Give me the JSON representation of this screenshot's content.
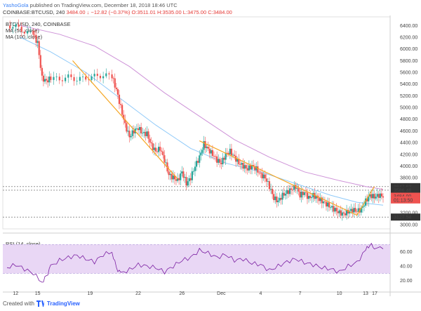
{
  "header": {
    "author": "YashoGola",
    "published_text": "published on TradingView.com, December 18, 2018 18:46 UTC",
    "symbol": "COINBASE:BTCUSD, 240",
    "change": "3484.00 ↓ −12.82 (−0.37%)",
    "o": "O:3511.01",
    "h": "H:3535.00",
    "l": "L:3475.00",
    "c": "C:3484.00"
  },
  "legend": {
    "title": "BTC/USD, 240, COINBASE",
    "ma50": "MA (50, close)",
    "ma100": "MA (100, close)",
    "rsi": "RSI (14, close)"
  },
  "footer": {
    "created_with": "Created with",
    "brand": "TradingView"
  },
  "colors": {
    "up": "#26a69a",
    "down": "#ef5350",
    "ma50": "#90caf9",
    "ma100": "#ce93d8",
    "trend": "#f5a623",
    "rsi_line": "#7b1fa2",
    "rsi_band": "#e9d7f5"
  },
  "chart_data": [
    {
      "type": "candlestick",
      "title": "BTC/USD, 240, COINBASE",
      "x_ticks": [
        "12",
        "15",
        "19",
        "22",
        "26",
        "Dec",
        "4",
        "7",
        "10",
        "13",
        "17"
      ],
      "y_ticks": [
        3000,
        3200,
        3400,
        3600,
        3800,
        4000,
        4200,
        4400,
        4600,
        4800,
        5000,
        5200,
        5400,
        5600,
        5800,
        6000,
        6200,
        6400
      ],
      "ylim": [
        2950,
        6500
      ],
      "price_tags": [
        {
          "label": "3647.63",
          "value": 3647.63,
          "color": "#333333"
        },
        {
          "label": "3586.46",
          "value": 3586.46,
          "color": "#333333"
        },
        {
          "label": "3484.00",
          "value": 3484,
          "color": "#ef5350"
        },
        {
          "label": "01:13:50",
          "value": 3420,
          "color": "#ef5350"
        },
        {
          "label": "3127.54",
          "value": 3127.54,
          "color": "#333333"
        }
      ],
      "support_lines": [
        3647.63,
        3586.46,
        3127.54
      ],
      "close_path": [
        [
          0,
          6400
        ],
        [
          2,
          6380
        ],
        [
          4,
          6300
        ],
        [
          6,
          6250
        ],
        [
          7,
          6100
        ],
        [
          8,
          5500
        ],
        [
          9,
          5450
        ],
        [
          10,
          5500
        ],
        [
          12,
          5480
        ],
        [
          14,
          5520
        ],
        [
          16,
          5480
        ],
        [
          18,
          5500
        ],
        [
          20,
          5530
        ],
        [
          22,
          5550
        ],
        [
          24,
          5530
        ],
        [
          25,
          5300
        ],
        [
          26,
          5000
        ],
        [
          27,
          4700
        ],
        [
          28,
          4500
        ],
        [
          29,
          4600
        ],
        [
          30,
          4650
        ],
        [
          31,
          4560
        ],
        [
          32,
          4550
        ],
        [
          33,
          4350
        ],
        [
          34,
          4250
        ],
        [
          35,
          4300
        ],
        [
          36,
          4100
        ],
        [
          37,
          3850
        ],
        [
          38,
          3800
        ],
        [
          39,
          3750
        ],
        [
          40,
          3900
        ],
        [
          41,
          3700
        ],
        [
          42,
          3800
        ],
        [
          43,
          4000
        ],
        [
          44,
          4150
        ],
        [
          45,
          4380
        ],
        [
          46,
          4280
        ],
        [
          47,
          4200
        ],
        [
          48,
          4100
        ],
        [
          49,
          4050
        ],
        [
          50,
          4200
        ],
        [
          51,
          4250
        ],
        [
          52,
          4150
        ],
        [
          53,
          4050
        ],
        [
          54,
          4000
        ],
        [
          55,
          3950
        ],
        [
          56,
          4000
        ],
        [
          57,
          3950
        ],
        [
          58,
          3850
        ],
        [
          59,
          3800
        ],
        [
          60,
          3650
        ],
        [
          61,
          3450
        ],
        [
          62,
          3400
        ],
        [
          63,
          3500
        ],
        [
          64,
          3550
        ],
        [
          65,
          3600
        ],
        [
          66,
          3650
        ],
        [
          67,
          3500
        ],
        [
          68,
          3550
        ],
        [
          69,
          3450
        ],
        [
          70,
          3500
        ],
        [
          71,
          3450
        ],
        [
          72,
          3400
        ],
        [
          73,
          3350
        ],
        [
          74,
          3300
        ],
        [
          75,
          3250
        ],
        [
          76,
          3200
        ],
        [
          77,
          3180
        ],
        [
          78,
          3220
        ],
        [
          79,
          3250
        ],
        [
          80,
          3230
        ],
        [
          81,
          3260
        ],
        [
          82,
          3400
        ],
        [
          83,
          3500
        ],
        [
          84,
          3470
        ],
        [
          85,
          3500
        ],
        [
          86,
          3484
        ]
      ],
      "ma50": [
        [
          3,
          6200
        ],
        [
          10,
          5950
        ],
        [
          18,
          5600
        ],
        [
          26,
          5150
        ],
        [
          34,
          4700
        ],
        [
          42,
          4300
        ],
        [
          50,
          4050
        ],
        [
          58,
          3900
        ],
        [
          66,
          3700
        ],
        [
          74,
          3500
        ],
        [
          80,
          3380
        ],
        [
          86,
          3330
        ]
      ],
      "ma100": [
        [
          3,
          6400
        ],
        [
          12,
          6250
        ],
        [
          20,
          6050
        ],
        [
          28,
          5700
        ],
        [
          36,
          5250
        ],
        [
          44,
          4850
        ],
        [
          52,
          4450
        ],
        [
          60,
          4150
        ],
        [
          68,
          3900
        ],
        [
          76,
          3750
        ],
        [
          82,
          3650
        ],
        [
          86,
          3600
        ]
      ],
      "trendlines": [
        {
          "from": [
            15,
            5800
          ],
          "to": [
            39,
            3780
          ]
        },
        {
          "from": [
            44,
            4430
          ],
          "to": [
            80,
            3160
          ]
        },
        {
          "from": [
            80,
            3160
          ],
          "to": [
            84,
            3650
          ]
        }
      ]
    },
    {
      "type": "line",
      "title": "RSI (14, close)",
      "y_ticks": [
        20,
        40,
        60
      ],
      "ylim": [
        10,
        80
      ],
      "band": [
        30,
        70
      ],
      "values": [
        [
          0,
          38
        ],
        [
          2,
          42
        ],
        [
          4,
          36
        ],
        [
          6,
          30
        ],
        [
          8,
          18
        ],
        [
          9,
          26
        ],
        [
          10,
          40
        ],
        [
          12,
          48
        ],
        [
          14,
          52
        ],
        [
          16,
          55
        ],
        [
          18,
          50
        ],
        [
          20,
          46
        ],
        [
          22,
          56
        ],
        [
          24,
          60
        ],
        [
          25,
          38
        ],
        [
          26,
          30
        ],
        [
          28,
          35
        ],
        [
          30,
          42
        ],
        [
          32,
          40
        ],
        [
          34,
          38
        ],
        [
          36,
          32
        ],
        [
          38,
          40
        ],
        [
          40,
          48
        ],
        [
          42,
          52
        ],
        [
          44,
          62
        ],
        [
          46,
          58
        ],
        [
          48,
          52
        ],
        [
          50,
          56
        ],
        [
          52,
          48
        ],
        [
          54,
          50
        ],
        [
          56,
          44
        ],
        [
          58,
          42
        ],
        [
          60,
          34
        ],
        [
          62,
          40
        ],
        [
          64,
          46
        ],
        [
          66,
          50
        ],
        [
          68,
          45
        ],
        [
          70,
          42
        ],
        [
          72,
          38
        ],
        [
          74,
          36
        ],
        [
          76,
          32
        ],
        [
          78,
          40
        ],
        [
          80,
          45
        ],
        [
          82,
          62
        ],
        [
          83,
          70
        ],
        [
          84,
          66
        ],
        [
          86,
          64
        ]
      ]
    }
  ]
}
